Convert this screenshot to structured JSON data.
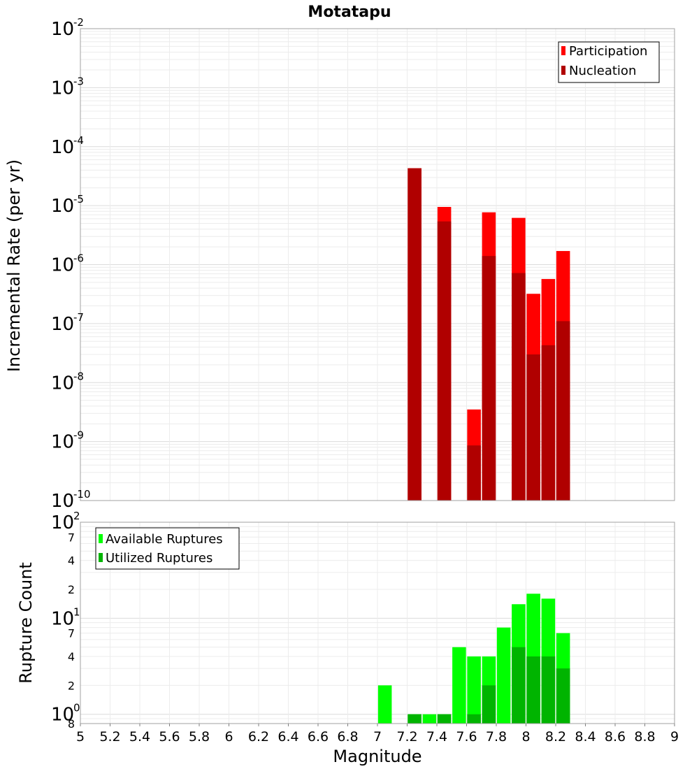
{
  "chart_data": [
    {
      "type": "bar",
      "title": "Motatapu",
      "xlabel": "",
      "ylabel": "Incremental Rate (per yr)",
      "yscale": "log",
      "ylim": [
        1e-10,
        0.01
      ],
      "xlim": [
        5,
        9
      ],
      "grid": true,
      "legend_position": "top-right",
      "y_ticks": [
        {
          "base": "10",
          "exp": "-10"
        },
        {
          "base": "10",
          "exp": "-9"
        },
        {
          "base": "10",
          "exp": "-8"
        },
        {
          "base": "10",
          "exp": "-7"
        },
        {
          "base": "10",
          "exp": "-6"
        },
        {
          "base": "10",
          "exp": "-5"
        },
        {
          "base": "10",
          "exp": "-4"
        },
        {
          "base": "10",
          "exp": "-3"
        },
        {
          "base": "10",
          "exp": "-2"
        }
      ],
      "x": [
        7.25,
        7.45,
        7.65,
        7.75,
        7.95,
        8.05,
        8.15,
        8.25
      ],
      "series": [
        {
          "name": "Participation",
          "color": "#ff0000",
          "values": [
            4.3e-05,
            9.5e-06,
            3.5e-09,
            7.7e-06,
            6.2e-06,
            3.2e-07,
            5.7e-07,
            1.7e-06
          ]
        },
        {
          "name": "Nucleation",
          "color": "#b00000",
          "values": [
            4.3e-05,
            5.4e-06,
            8.6e-10,
            1.4e-06,
            7.2e-07,
            3e-08,
            4.3e-08,
            1.1e-07
          ]
        }
      ]
    },
    {
      "type": "bar",
      "title": "",
      "xlabel": "Magnitude",
      "ylabel": "Rupture Count",
      "yscale": "log",
      "ylim": [
        0.8,
        100
      ],
      "xlim": [
        5,
        9
      ],
      "grid": true,
      "legend_position": "top-left",
      "x_tick_labels": [
        "5",
        "5.2",
        "5.4",
        "5.6",
        "5.8",
        "6",
        "6.2",
        "6.4",
        "6.6",
        "6.8",
        "7",
        "7.2",
        "7.4",
        "7.6",
        "7.8",
        "8",
        "8.2",
        "8.4",
        "8.6",
        "8.8",
        "9"
      ],
      "y_major_ticks": [
        {
          "value": 1,
          "base": "10",
          "exp": "0"
        },
        {
          "value": 10,
          "base": "10",
          "exp": "1"
        },
        {
          "value": 100,
          "base": "10",
          "exp": "2"
        }
      ],
      "y_minor_ticks": [
        {
          "value": 0.8,
          "label": "8"
        },
        {
          "value": 2,
          "label": "2"
        },
        {
          "value": 4,
          "label": "4"
        },
        {
          "value": 7,
          "label": "7"
        },
        {
          "value": 20,
          "label": "2"
        },
        {
          "value": 40,
          "label": "4"
        },
        {
          "value": 70,
          "label": "7"
        }
      ],
      "x": [
        7.05,
        7.25,
        7.35,
        7.45,
        7.55,
        7.65,
        7.75,
        7.85,
        7.95,
        8.05,
        8.15,
        8.25
      ],
      "series": [
        {
          "name": "Available Ruptures",
          "color": "#00ff00",
          "values": [
            2,
            1,
            1,
            1,
            5,
            4,
            4,
            8,
            14,
            18,
            16,
            7
          ]
        },
        {
          "name": "Utilized Ruptures",
          "color": "#00b400",
          "values": [
            0,
            1,
            0,
            1,
            0,
            1,
            2,
            0,
            5,
            4,
            4,
            3
          ]
        }
      ]
    }
  ]
}
